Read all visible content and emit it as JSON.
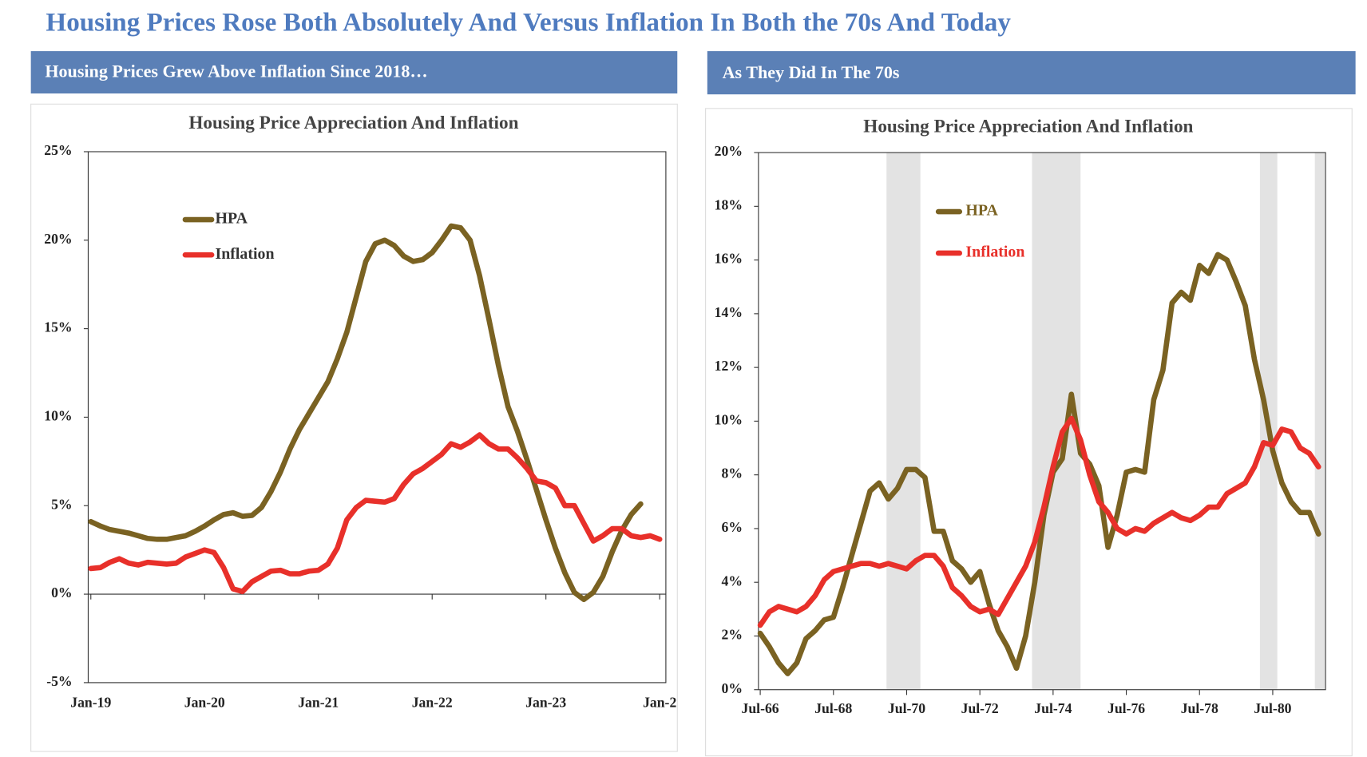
{
  "title": "Housing Prices Rose Both Absolutely And Versus Inflation In Both the 70s And Today",
  "panels": [
    "Housing Prices Grew Above Inflation Since 2018…",
    "As They Did In The 70s"
  ],
  "chart_data": [
    {
      "type": "line",
      "title": "Housing Price Appreciation And Inflation",
      "categories": [
        "Jan-19",
        null,
        null,
        null,
        null,
        null,
        null,
        null,
        null,
        null,
        null,
        null,
        "Jan-20",
        null,
        null,
        null,
        null,
        null,
        null,
        null,
        null,
        null,
        null,
        null,
        "Jan-21",
        null,
        null,
        null,
        null,
        null,
        null,
        null,
        null,
        null,
        null,
        null,
        "Jan-22",
        null,
        null,
        null,
        null,
        null,
        null,
        null,
        null,
        null,
        null,
        null,
        "Jan-23",
        null,
        null,
        null,
        null,
        null,
        null,
        null,
        null,
        null,
        null,
        null,
        "Jan-2"
      ],
      "series": [
        {
          "name": "HPA",
          "color": "#7a6222",
          "values": [
            4.1,
            3.85,
            3.65,
            3.55,
            3.45,
            3.3,
            3.15,
            3.1,
            3.1,
            3.2,
            3.3,
            3.55,
            3.85,
            4.2,
            4.5,
            4.6,
            4.4,
            4.45,
            4.9,
            5.8,
            6.9,
            8.2,
            9.3,
            10.2,
            11.1,
            12.0,
            13.3,
            14.8,
            16.8,
            18.8,
            19.8,
            20.0,
            19.7,
            19.1,
            18.8,
            18.9,
            19.3,
            20.0,
            20.8,
            20.7,
            20.0,
            18.0,
            15.5,
            12.9,
            10.6,
            9.2,
            7.6,
            5.9,
            4.2,
            2.6,
            1.2,
            0.1,
            -0.3,
            0.1,
            1.0,
            2.4,
            3.6,
            4.5,
            5.1,
            null,
            null
          ]
        },
        {
          "name": "Inflation",
          "color": "#e8302a",
          "values": [
            1.45,
            1.5,
            1.8,
            2.0,
            1.75,
            1.65,
            1.8,
            1.75,
            1.7,
            1.75,
            2.1,
            2.3,
            2.5,
            2.35,
            1.5,
            0.3,
            0.15,
            0.7,
            1.0,
            1.3,
            1.35,
            1.15,
            1.15,
            1.3,
            1.35,
            1.7,
            2.6,
            4.2,
            4.9,
            5.3,
            5.25,
            5.2,
            5.4,
            6.2,
            6.8,
            7.1,
            7.5,
            7.9,
            8.5,
            8.3,
            8.6,
            9.0,
            8.5,
            8.2,
            8.2,
            7.7,
            7.1,
            6.4,
            6.3,
            6.0,
            5.0,
            5.0,
            4.0,
            3.0,
            3.3,
            3.7,
            3.7,
            3.3,
            3.2,
            3.3,
            3.1
          ]
        }
      ],
      "ylim": [
        -5,
        25
      ],
      "yticks": [
        {
          "value": -5,
          "label": "-5%"
        },
        {
          "value": 0,
          "label": "0%"
        },
        {
          "value": 5,
          "label": "5%"
        },
        {
          "value": 10,
          "label": "10%"
        },
        {
          "value": 15,
          "label": "15%"
        },
        {
          "value": 20,
          "label": "20%"
        },
        {
          "value": 25,
          "label": "25%"
        }
      ],
      "grid": false,
      "legend": "upper left"
    },
    {
      "type": "line",
      "title": "Housing Price Appreciation And Inflation",
      "categories": [
        "Jul-66",
        null,
        null,
        null,
        null,
        null,
        null,
        null,
        "Jul-68",
        null,
        null,
        null,
        null,
        null,
        null,
        null,
        "Jul-70",
        null,
        null,
        null,
        null,
        null,
        null,
        null,
        "Jul-72",
        null,
        null,
        null,
        null,
        null,
        null,
        null,
        "Jul-74",
        null,
        null,
        null,
        null,
        null,
        null,
        null,
        "Jul-76",
        null,
        null,
        null,
        null,
        null,
        null,
        null,
        "Jul-78",
        null,
        null,
        null,
        null,
        null,
        null,
        null,
        "Jul-80",
        null,
        null,
        null,
        null,
        null
      ],
      "series": [
        {
          "name": "HPA",
          "color": "#7a6222",
          "values": [
            2.1,
            1.6,
            1.0,
            0.6,
            1.0,
            1.9,
            2.2,
            2.6,
            2.7,
            3.8,
            5.0,
            6.2,
            7.4,
            7.7,
            7.1,
            7.5,
            8.2,
            8.2,
            7.9,
            5.9,
            5.9,
            4.8,
            4.5,
            4.0,
            4.4,
            3.2,
            2.2,
            1.6,
            0.8,
            2.0,
            4.0,
            6.5,
            8.1,
            8.6,
            11.0,
            8.8,
            8.4,
            7.6,
            5.3,
            6.5,
            8.1,
            8.2,
            8.1,
            10.8,
            11.9,
            14.4,
            14.8,
            14.5,
            15.8,
            15.5,
            16.2,
            16.0,
            15.2,
            14.3,
            12.3,
            10.8,
            8.9,
            7.7,
            7.0,
            6.6,
            6.6,
            5.8
          ]
        },
        {
          "name": "Inflation",
          "color": "#e8302a",
          "values": [
            2.4,
            2.9,
            3.1,
            3.0,
            2.9,
            3.1,
            3.5,
            4.1,
            4.4,
            4.5,
            4.6,
            4.7,
            4.7,
            4.6,
            4.7,
            4.6,
            4.5,
            4.8,
            5.0,
            5.0,
            4.6,
            3.8,
            3.5,
            3.1,
            2.9,
            3.0,
            2.8,
            3.4,
            4.0,
            4.6,
            5.5,
            6.8,
            8.3,
            9.6,
            10.1,
            9.3,
            8.0,
            7.0,
            6.6,
            6.0,
            5.8,
            6.0,
            5.9,
            6.2,
            6.4,
            6.6,
            6.4,
            6.3,
            6.5,
            6.8,
            6.8,
            7.3,
            7.5,
            7.7,
            8.3,
            9.2,
            9.1,
            9.7,
            9.6,
            9.0,
            8.8,
            8.3
          ]
        }
      ],
      "recessions": [
        [
          13.8,
          17.5
        ],
        [
          29.7,
          35.0
        ],
        [
          54.6,
          56.5
        ],
        [
          60.6,
          61.7
        ]
      ],
      "ylim": [
        0,
        20
      ],
      "yticks": [
        {
          "value": 0,
          "label": "0%"
        },
        {
          "value": 2,
          "label": "2%"
        },
        {
          "value": 4,
          "label": "4%"
        },
        {
          "value": 6,
          "label": "6%"
        },
        {
          "value": 8,
          "label": "8%"
        },
        {
          "value": 10,
          "label": "10%"
        },
        {
          "value": 12,
          "label": "12%"
        },
        {
          "value": 14,
          "label": "14%"
        },
        {
          "value": 16,
          "label": "16%"
        },
        {
          "value": 18,
          "label": "18%"
        },
        {
          "value": 20,
          "label": "20%"
        }
      ],
      "grid": false,
      "legend": "upper left"
    }
  ]
}
